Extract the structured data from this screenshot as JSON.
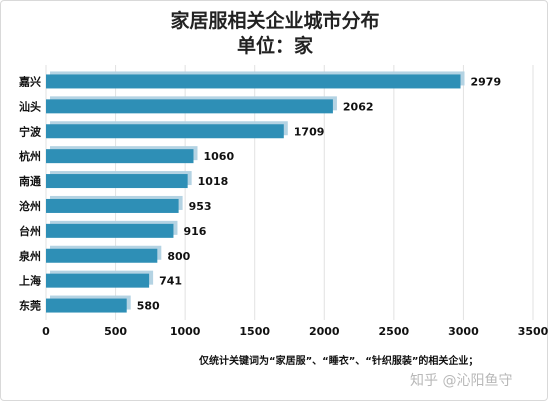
{
  "title": "家居服相关企业城市分布",
  "subtitle": "单位：家",
  "footnote": "仅统计关键词为“家居服”、“睡衣”、“针织服装”的相关企业；",
  "watermark": "知乎 @沁阳鱼守",
  "chart_data": {
    "type": "bar",
    "orientation": "horizontal",
    "categories": [
      "嘉兴",
      "汕头",
      "宁波",
      "杭州",
      "南通",
      "沧州",
      "台州",
      "泉州",
      "上海",
      "东莞"
    ],
    "values": [
      2979,
      2062,
      1709,
      1060,
      1018,
      953,
      916,
      800,
      741,
      580
    ],
    "xlim": [
      0,
      3500
    ],
    "xticks": [
      0,
      500,
      1000,
      1500,
      2000,
      2500,
      3000,
      3500
    ],
    "grid": true,
    "bar_color": "#2e8fb6",
    "shadow_color": "#b4d3e3",
    "grid_color": "#e2e2e2"
  }
}
